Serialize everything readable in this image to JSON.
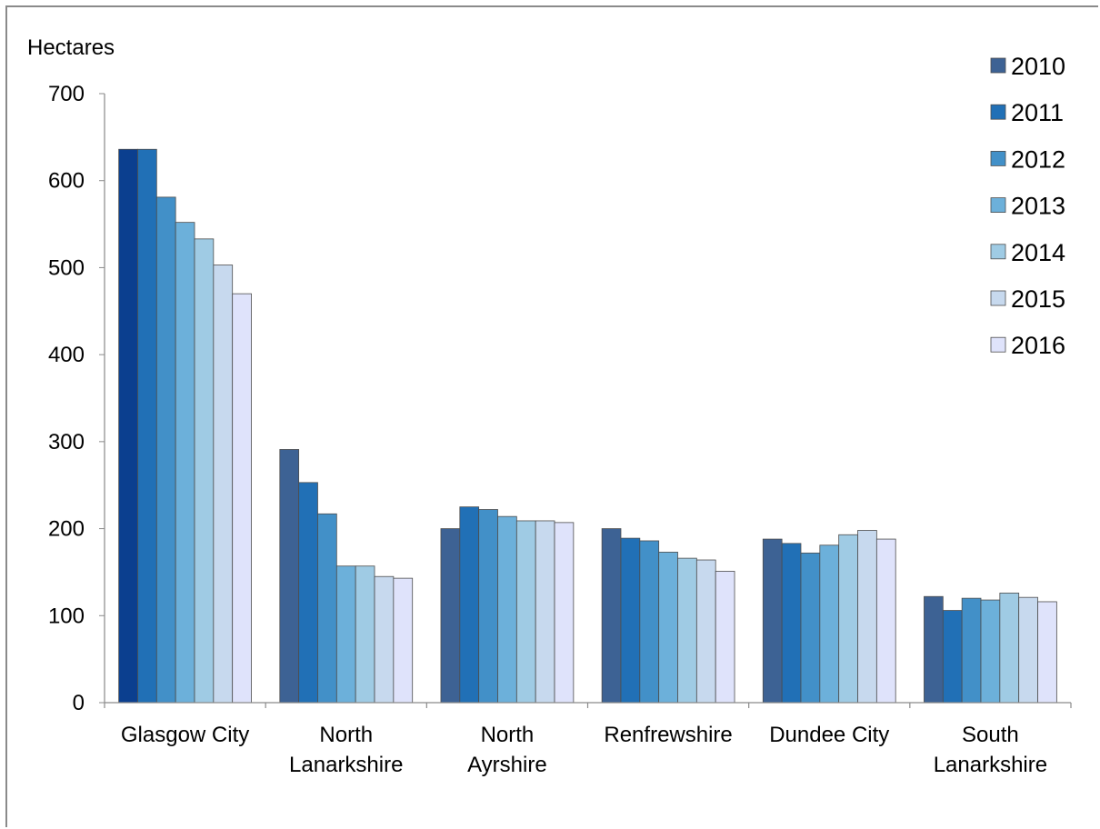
{
  "chart_data": {
    "type": "bar",
    "title": "",
    "xlabel": "",
    "ylabel": "Hectares",
    "ylim": [
      0,
      700
    ],
    "yticks": [
      0,
      100,
      200,
      300,
      400,
      500,
      600,
      700
    ],
    "grid": false,
    "legend_position": "top-right",
    "categories": [
      [
        "Glasgow City"
      ],
      [
        "North",
        "Lanarkshire"
      ],
      [
        "North",
        "Ayrshire"
      ],
      [
        "Renfrewshire"
      ],
      [
        "Dundee City"
      ],
      [
        "South",
        "Lanarkshire"
      ]
    ],
    "series": [
      {
        "name": "2010",
        "color": "#3d6294",
        "values": [
          636,
          291,
          200,
          200,
          188,
          122
        ]
      },
      {
        "name": "2011",
        "color": "#2170b6",
        "values": [
          636,
          253,
          225,
          189,
          183,
          106
        ]
      },
      {
        "name": "2012",
        "color": "#4290c8",
        "values": [
          581,
          217,
          222,
          186,
          172,
          120
        ]
      },
      {
        "name": "2013",
        "color": "#6cb0da",
        "values": [
          552,
          157,
          214,
          173,
          181,
          118
        ]
      },
      {
        "name": "2014",
        "color": "#9fcbe4",
        "values": [
          533,
          157,
          209,
          166,
          193,
          126
        ]
      },
      {
        "name": "2015",
        "color": "#c7d9ee",
        "values": [
          503,
          145,
          209,
          164,
          198,
          121
        ]
      },
      {
        "name": "2016",
        "color": "#dfe3fb",
        "values": [
          470,
          143,
          207,
          151,
          188,
          116
        ]
      }
    ],
    "highlight": {
      "category_index": 0,
      "series_index": 0,
      "color": "#0b3f8f"
    }
  }
}
